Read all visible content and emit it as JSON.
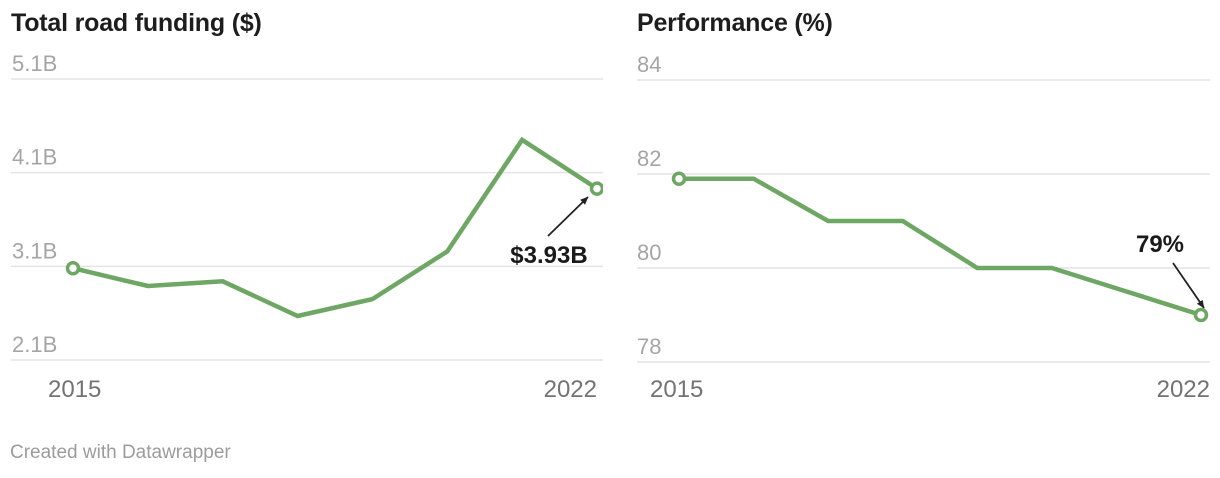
{
  "footer": {
    "credit": "Created with Datawrapper"
  },
  "colors": {
    "line_green": "#6DA763",
    "gridline": "#e4e4e4",
    "y_tick_label": "#a5a5a5",
    "x_tick_label": "#737373",
    "title_text": "#1d1d1d",
    "annotation_text": "#1a1a1a",
    "annotation_arrow": "#222222",
    "footer_text": "#9c9c9c",
    "marker_fill": "#ffffff"
  },
  "chart_data": [
    {
      "type": "line",
      "title": "Total road funding ($)",
      "x": [
        2015,
        2016,
        2017,
        2018,
        2019,
        2020,
        2021,
        2022
      ],
      "values": [
        3.08,
        2.89,
        2.94,
        2.57,
        2.75,
        3.26,
        4.45,
        3.93
      ],
      "unit": "B",
      "ylim": [
        2.1,
        5.1
      ],
      "yticks": [
        {
          "value": 5.1,
          "label": "5.1B"
        },
        {
          "value": 4.1,
          "label": "4.1B"
        },
        {
          "value": 3.1,
          "label": "3.1B"
        },
        {
          "value": 2.1,
          "label": "2.1B"
        }
      ],
      "xtick_labels": {
        "first": "2015",
        "last": "2022"
      },
      "grid": true,
      "legend": "none",
      "markers": "first-and-last-point",
      "annotation": {
        "text": "$3.93B",
        "point_index": 7
      }
    },
    {
      "type": "line",
      "title": "Performance (%)",
      "x": [
        2015,
        2016,
        2017,
        2018,
        2019,
        2020,
        2021,
        2022
      ],
      "values": [
        81.9,
        81.9,
        81.0,
        81.0,
        80.0,
        80.0,
        79.5,
        79.0
      ],
      "unit": "%",
      "ylim": [
        78,
        84
      ],
      "yticks": [
        {
          "value": 84,
          "label": "84"
        },
        {
          "value": 82,
          "label": "82"
        },
        {
          "value": 80,
          "label": "80"
        },
        {
          "value": 78,
          "label": "78"
        }
      ],
      "xtick_labels": {
        "first": "2015",
        "last": "2022"
      },
      "grid": true,
      "legend": "none",
      "markers": "first-and-last-point",
      "annotation": {
        "text": "79%",
        "point_index": 7
      }
    }
  ]
}
